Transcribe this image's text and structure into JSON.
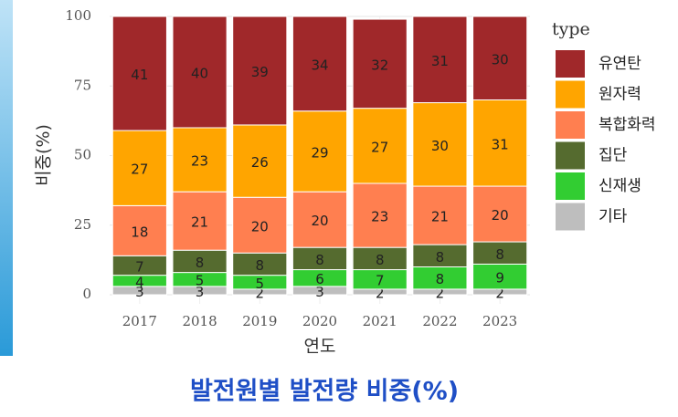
{
  "chart_data": {
    "type": "stacked_bar",
    "title": "발전원별 발전량 비중(%)",
    "x_label": "연도",
    "y_label": "비중(%)",
    "legend_title": "type",
    "categories": [
      "2017",
      "2018",
      "2019",
      "2020",
      "2021",
      "2022",
      "2023"
    ],
    "series": [
      {
        "name": "유연탄",
        "color": "#a0282a",
        "values": [
          41,
          40,
          39,
          34,
          32,
          31,
          30
        ]
      },
      {
        "name": "원자력",
        "color": "#ffa500",
        "values": [
          27,
          23,
          26,
          29,
          27,
          30,
          31
        ]
      },
      {
        "name": "복합화력",
        "color": "#ff7f50",
        "values": [
          18,
          21,
          20,
          20,
          23,
          21,
          20
        ]
      },
      {
        "name": "집단",
        "color": "#556b2f",
        "values": [
          7,
          8,
          8,
          8,
          8,
          8,
          8
        ]
      },
      {
        "name": "신재생",
        "color": "#32cd32",
        "values": [
          4,
          5,
          5,
          6,
          7,
          8,
          9
        ]
      },
      {
        "name": "기타",
        "color": "#bebebe",
        "values": [
          3,
          3,
          2,
          3,
          2,
          2,
          2
        ]
      }
    ],
    "ylim": [
      0,
      100
    ],
    "yticks": [
      0,
      25,
      50,
      75,
      100
    ],
    "grid": true
  }
}
